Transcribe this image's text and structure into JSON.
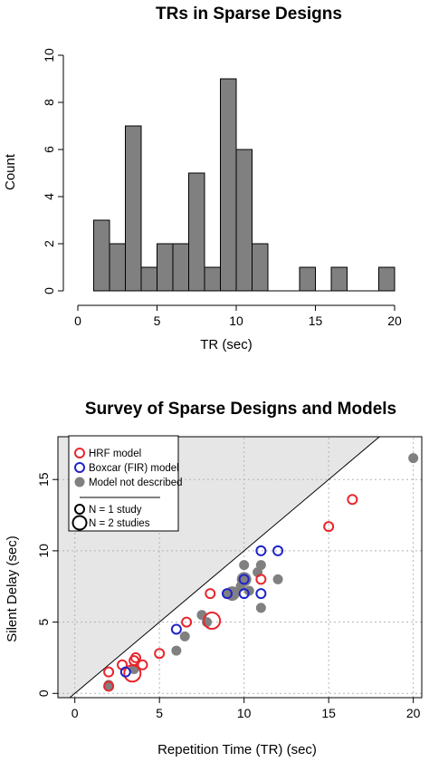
{
  "chart_data": [
    {
      "type": "bar",
      "title": "TRs in Sparse Designs",
      "xlabel": "TR (sec)",
      "ylabel": "Count",
      "xlim": [
        0,
        20
      ],
      "ylim": [
        0,
        10
      ],
      "xticks": [
        0,
        5,
        10,
        15,
        20
      ],
      "yticks": [
        0,
        2,
        4,
        6,
        8,
        10
      ],
      "bin_width": 1,
      "bins": [
        {
          "start": 1,
          "value": 0
        },
        {
          "start": 1,
          "value": 3
        },
        {
          "start": 2,
          "value": 2
        },
        {
          "start": 3,
          "value": 7
        },
        {
          "start": 4,
          "value": 1
        },
        {
          "start": 5,
          "value": 2
        },
        {
          "start": 6,
          "value": 2
        },
        {
          "start": 7,
          "value": 5
        },
        {
          "start": 8,
          "value": 1
        },
        {
          "start": 9,
          "value": 9
        },
        {
          "start": 10,
          "value": 6
        },
        {
          "start": 11,
          "value": 2
        },
        {
          "start": 12,
          "value": 0
        },
        {
          "start": 13,
          "value": 0
        },
        {
          "start": 14,
          "value": 1
        },
        {
          "start": 15,
          "value": 0
        },
        {
          "start": 16,
          "value": 1
        },
        {
          "start": 17,
          "value": 0
        },
        {
          "start": 18,
          "value": 0
        },
        {
          "start": 19,
          "value": 1
        }
      ],
      "bar_color": "#808080"
    },
    {
      "type": "scatter",
      "title": "Survey of Sparse Designs and Models",
      "xlabel": "Repetition Time (TR) (sec)",
      "ylabel": "Silent Delay (sec)",
      "xlim": [
        -1,
        20.5
      ],
      "ylim": [
        -0.3,
        18
      ],
      "xticks": [
        0,
        5,
        10,
        15,
        20
      ],
      "yticks": [
        0,
        5,
        10,
        15
      ],
      "grid": true,
      "legend_position": "top-left",
      "legend": {
        "entries": [
          "HRF model",
          "Boxcar (FIR) model",
          "Model not described"
        ],
        "size_entries": [
          "N = 1 study",
          "N = 2 studies"
        ]
      },
      "series": [
        {
          "name": "HRF model",
          "color": "#e8262d",
          "marker": "open-circle",
          "points": [
            {
              "x": 2,
              "y": 1.5,
              "n": 1
            },
            {
              "x": 2,
              "y": 0.5,
              "n": 1
            },
            {
              "x": 2.8,
              "y": 2,
              "n": 1
            },
            {
              "x": 3.4,
              "y": 1.4,
              "n": 2
            },
            {
              "x": 3.5,
              "y": 2.3,
              "n": 1
            },
            {
              "x": 3.6,
              "y": 2.5,
              "n": 1
            },
            {
              "x": 4,
              "y": 2,
              "n": 1
            },
            {
              "x": 5,
              "y": 2.8,
              "n": 1
            },
            {
              "x": 6.6,
              "y": 5,
              "n": 1
            },
            {
              "x": 8,
              "y": 7,
              "n": 1
            },
            {
              "x": 8.1,
              "y": 5.1,
              "n": 2
            },
            {
              "x": 11,
              "y": 8,
              "n": 1
            },
            {
              "x": 15,
              "y": 11.7,
              "n": 1
            },
            {
              "x": 16.4,
              "y": 13.6,
              "n": 1
            }
          ]
        },
        {
          "name": "Boxcar (FIR) model",
          "color": "#1f24c9",
          "marker": "open-circle",
          "points": [
            {
              "x": 3,
              "y": 1.5,
              "n": 1
            },
            {
              "x": 6,
              "y": 4.5,
              "n": 1
            },
            {
              "x": 9,
              "y": 7,
              "n": 1
            },
            {
              "x": 10,
              "y": 7,
              "n": 1
            },
            {
              "x": 10,
              "y": 8,
              "n": 1
            },
            {
              "x": 11,
              "y": 7,
              "n": 1
            },
            {
              "x": 11,
              "y": 10,
              "n": 1
            },
            {
              "x": 12,
              "y": 10,
              "n": 1
            }
          ]
        },
        {
          "name": "Model not described",
          "color": "#808080",
          "marker": "filled-circle",
          "points": [
            {
              "x": 2,
              "y": 0.6,
              "n": 1
            },
            {
              "x": 3.5,
              "y": 1.7,
              "n": 1
            },
            {
              "x": 6,
              "y": 3,
              "n": 1
            },
            {
              "x": 6.5,
              "y": 4,
              "n": 1
            },
            {
              "x": 7.5,
              "y": 5.5,
              "n": 1
            },
            {
              "x": 7.8,
              "y": 5,
              "n": 1
            },
            {
              "x": 9,
              "y": 7,
              "n": 1
            },
            {
              "x": 9.3,
              "y": 7,
              "n": 2
            },
            {
              "x": 9.8,
              "y": 7.5,
              "n": 1
            },
            {
              "x": 10,
              "y": 8,
              "n": 2
            },
            {
              "x": 10,
              "y": 9,
              "n": 1
            },
            {
              "x": 10.3,
              "y": 7.2,
              "n": 1
            },
            {
              "x": 10.8,
              "y": 8.5,
              "n": 1
            },
            {
              "x": 11,
              "y": 9,
              "n": 1
            },
            {
              "x": 11,
              "y": 6,
              "n": 1
            },
            {
              "x": 12,
              "y": 8,
              "n": 1
            },
            {
              "x": 20,
              "y": 16.5,
              "n": 1
            }
          ]
        }
      ]
    }
  ]
}
